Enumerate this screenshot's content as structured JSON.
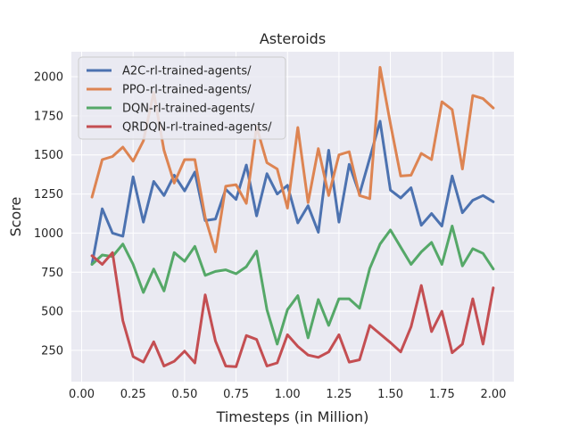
{
  "chart_data": {
    "type": "line",
    "title": "Asteroids",
    "xlabel": "Timesteps (in Million)",
    "ylabel": "Score",
    "xlim": [
      -0.05,
      2.1
    ],
    "ylim": [
      50,
      2160
    ],
    "xticks": [
      "0.00",
      "0.25",
      "0.50",
      "0.75",
      "1.00",
      "1.25",
      "1.50",
      "1.75",
      "2.00"
    ],
    "xtick_values": [
      0,
      0.25,
      0.5,
      0.75,
      1.0,
      1.25,
      1.5,
      1.75,
      2.0
    ],
    "yticks": [
      "250",
      "500",
      "750",
      "1000",
      "1250",
      "1500",
      "1750",
      "2000"
    ],
    "ytick_values": [
      250,
      500,
      750,
      1000,
      1250,
      1500,
      1750,
      2000
    ],
    "grid": true,
    "legend_position": "top-left",
    "x": [
      0.05,
      0.1,
      0.15,
      0.2,
      0.25,
      0.3,
      0.35,
      0.4,
      0.45,
      0.5,
      0.55,
      0.6,
      0.65,
      0.7,
      0.75,
      0.8,
      0.85,
      0.9,
      0.95,
      1.0,
      1.05,
      1.1,
      1.15,
      1.2,
      1.25,
      1.3,
      1.35,
      1.4,
      1.45,
      1.5,
      1.55,
      1.6,
      1.65,
      1.7,
      1.75,
      1.8,
      1.85,
      1.9,
      1.95,
      2.0
    ],
    "series": [
      {
        "name": "A2C-rl-trained-agents/",
        "color": "#4c72b0",
        "values": [
          800,
          1155,
          1000,
          980,
          1360,
          1070,
          1330,
          1240,
          1370,
          1270,
          1390,
          1080,
          1090,
          1280,
          1215,
          1435,
          1110,
          1380,
          1250,
          1305,
          1065,
          1175,
          1005,
          1530,
          1070,
          1440,
          1250,
          1480,
          1715,
          1275,
          1225,
          1290,
          1050,
          1125,
          1045,
          1365,
          1130,
          1210,
          1240,
          1200
        ]
      },
      {
        "name": "PPO-rl-trained-agents/",
        "color": "#dd8452",
        "values": [
          1230,
          1470,
          1490,
          1550,
          1460,
          1590,
          1900,
          1530,
          1320,
          1470,
          1470,
          1100,
          880,
          1300,
          1310,
          1190,
          1680,
          1450,
          1410,
          1160,
          1675,
          1195,
          1540,
          1240,
          1500,
          1520,
          1240,
          1220,
          2060,
          1700,
          1365,
          1370,
          1510,
          1470,
          1840,
          1790,
          1410,
          1880,
          1860,
          1800
        ]
      },
      {
        "name": "DQN-rl-trained-agents/",
        "color": "#55a868",
        "values": [
          800,
          860,
          850,
          930,
          800,
          620,
          770,
          630,
          875,
          820,
          915,
          730,
          755,
          765,
          740,
          785,
          885,
          510,
          290,
          510,
          600,
          330,
          575,
          410,
          580,
          580,
          520,
          775,
          930,
          1020,
          910,
          800,
          880,
          940,
          800,
          1045,
          790,
          900,
          870,
          770
        ]
      },
      {
        "name": "QRDQN-rl-trained-agents/",
        "color": "#c44e52",
        "values": [
          855,
          800,
          875,
          440,
          210,
          175,
          305,
          150,
          180,
          245,
          170,
          605,
          310,
          150,
          145,
          345,
          320,
          150,
          170,
          350,
          275,
          220,
          205,
          240,
          350,
          175,
          190,
          410,
          355,
          300,
          240,
          400,
          665,
          370,
          500,
          235,
          290,
          580,
          290,
          650
        ]
      }
    ]
  }
}
